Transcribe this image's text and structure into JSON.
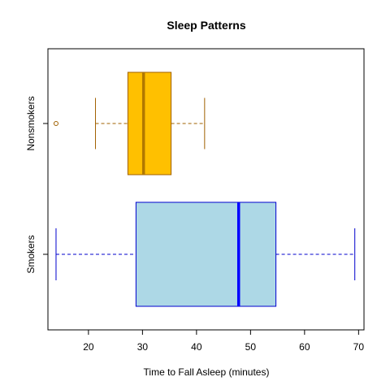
{
  "chart_data": {
    "type": "boxplot",
    "orientation": "horizontal",
    "title": "Sleep Patterns",
    "xlabel": "Time to Fall Asleep (minutes)",
    "ylabel": "",
    "xlim": [
      12.5,
      71
    ],
    "x_ticks": [
      20,
      30,
      40,
      50,
      60,
      70
    ],
    "x_tick_labels": [
      "20",
      "30",
      "40",
      "50",
      "60",
      "70"
    ],
    "grid": false,
    "categories": [
      "Nonsmokers",
      "Smokers"
    ],
    "series": [
      {
        "name": "Nonsmokers",
        "whisker_low": 21.3,
        "q1": 27.3,
        "median": 30.2,
        "q3": 35.3,
        "whisker_high": 41.5,
        "outliers": [
          14.0
        ],
        "fill_color": "#FFC000",
        "border_color": "#A06000",
        "median_color": "#B07800"
      },
      {
        "name": "Smokers",
        "whisker_low": 14.0,
        "q1": 28.8,
        "median": 47.8,
        "q3": 54.7,
        "whisker_high": 69.3,
        "outliers": [],
        "fill_color": "#ADD8E6",
        "border_color": "#0000CD",
        "median_color": "#0000FF"
      }
    ]
  }
}
